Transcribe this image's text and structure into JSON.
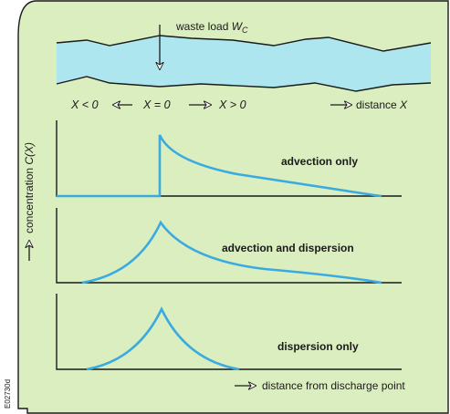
{
  "colors": {
    "panel_fill": "#dbeebf",
    "river_fill": "#aee6ef",
    "curve": "#3aabe1",
    "ink": "#1a1a1a"
  },
  "river": {
    "waste_load": "waste load ",
    "waste_load_symbol": "W",
    "waste_load_subscript": "C"
  },
  "positions": {
    "upstream": "X < 0",
    "origin": "X = 0",
    "downstream": "X > 0",
    "distance_prefix": "distance ",
    "distance_symbol": "X"
  },
  "y_axis_label": {
    "prefix": "concentration ",
    "symbol": "C(X)"
  },
  "x_axis_label": "distance from discharge point",
  "figure_code": "E02730d",
  "panels": [
    {
      "label": "advection only"
    },
    {
      "label": "advection and dispersion"
    },
    {
      "label": "dispersion only"
    }
  ]
}
